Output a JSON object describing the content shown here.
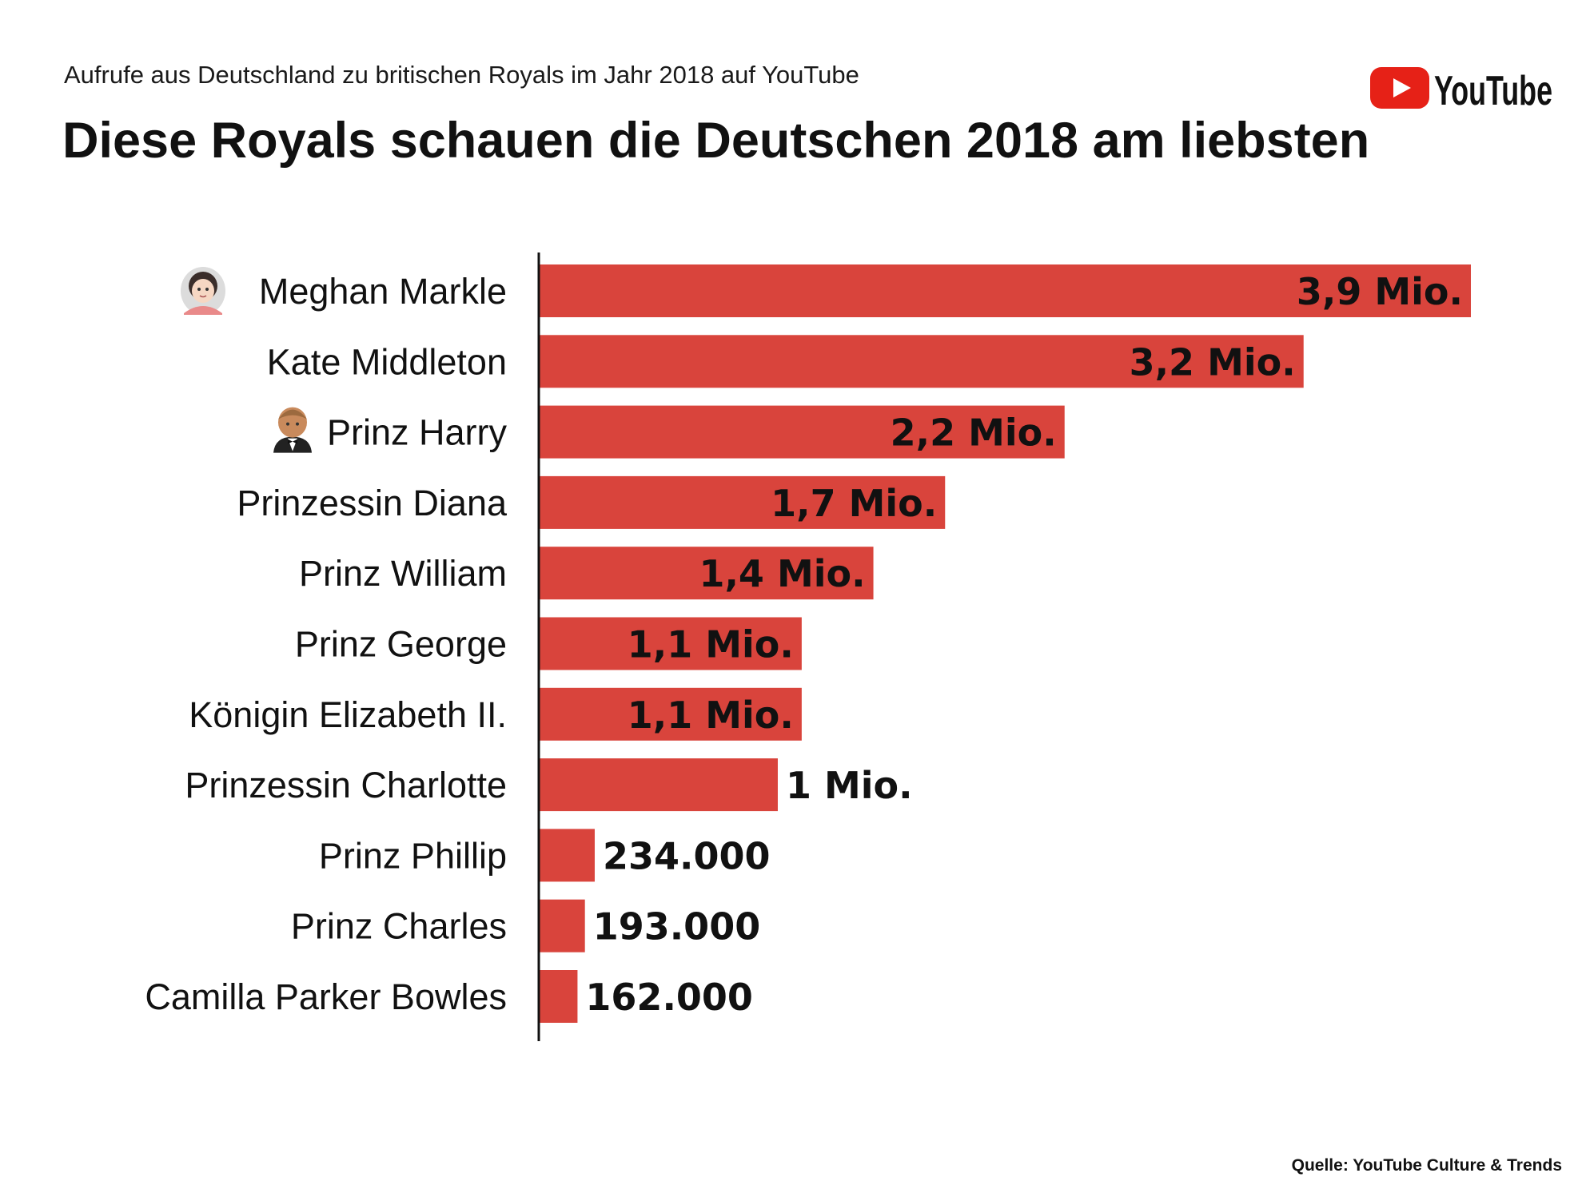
{
  "header": {
    "subtitle": "Aufrufe aus Deutschland zu britischen Royals im Jahr 2018 auf YouTube",
    "title": "Diese Royals schauen die Deutschen 2018 am liebsten"
  },
  "brand": {
    "logo_text": "YouTube",
    "logo_red": "#e62117"
  },
  "footer": {
    "source": "Quelle: YouTube Culture & Trends"
  },
  "colors": {
    "bar": "#d9443c",
    "axis": "#111111"
  },
  "chart_data": {
    "type": "bar",
    "orientation": "horizontal",
    "title": "Diese Royals schauen die Deutschen 2018 am liebsten",
    "subtitle": "Aufrufe aus Deutschland zu britischen Royals im Jahr 2018 auf YouTube",
    "categories": [
      "Meghan Markle",
      "Kate Middleton",
      "Prinz Harry",
      "Prinzessin Diana",
      "Prinz William",
      "Prinz George",
      "Königin Elizabeth II.",
      "Prinzessin Charlotte",
      "Prinz Phillip",
      "Prinz Charles",
      "Camilla Parker Bowles"
    ],
    "icons": [
      "bride-emoji-icon",
      "",
      "groom-emoji-icon",
      "",
      "",
      "",
      "",
      "",
      "",
      "",
      ""
    ],
    "values": [
      3900000,
      3200000,
      2200000,
      1700000,
      1400000,
      1100000,
      1100000,
      1000000,
      234000,
      193000,
      162000
    ],
    "labels": [
      "3,9 Mio.",
      "3,2 Mio.",
      "2,2 Mio.",
      "1,7 Mio.",
      "1,4 Mio.",
      "1,1 Mio.",
      "1,1 Mio.",
      "1 Mio.",
      "234.000",
      "193.000",
      "162.000"
    ],
    "xlim": [
      0,
      3900000
    ],
    "grid": false,
    "legend": "none"
  }
}
